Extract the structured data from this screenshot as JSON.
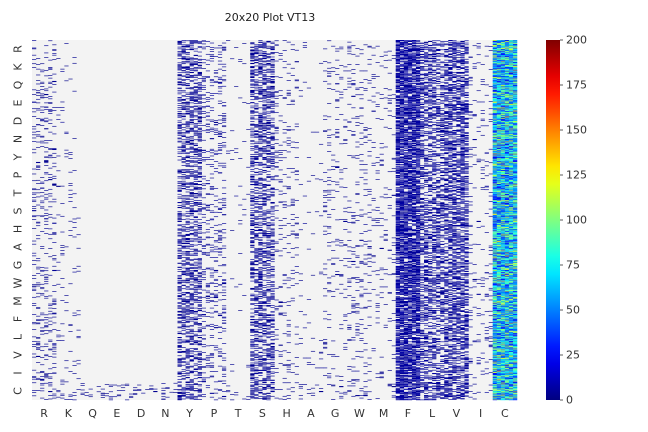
{
  "chart_data": {
    "type": "heatmap",
    "title": "20x20 Plot VT13",
    "xlabel": "",
    "ylabel": "",
    "x_categories": [
      "R",
      "K",
      "Q",
      "E",
      "D",
      "N",
      "Y",
      "P",
      "T",
      "S",
      "H",
      "A",
      "G",
      "W",
      "M",
      "F",
      "L",
      "V",
      "I",
      "C"
    ],
    "y_categories_top_to_bottom": [
      "R",
      "K",
      "Q",
      "E",
      "D",
      "N",
      "Y",
      "P",
      "T",
      "S",
      "H",
      "A",
      "G",
      "W",
      "M",
      "F",
      "L",
      "V",
      "I",
      "C"
    ],
    "colorscale": "jet",
    "colorbar_range": [
      0,
      200
    ],
    "colorbar_ticks": [
      0,
      25,
      50,
      75,
      100,
      125,
      150,
      175,
      200
    ],
    "background_color": "#f3f3f3",
    "grid": false,
    "legend": "colorbar-right",
    "column_density": {
      "R": 0.09,
      "K": 0.02,
      "Q": 0.0,
      "E": 0.0,
      "D": 0.0,
      "N": 0.0,
      "Y": 0.3,
      "P": 0.1,
      "T": 0.01,
      "S": 0.3,
      "H": 0.05,
      "A": 0.01,
      "G": 0.04,
      "W": 0.05,
      "M": 0.03,
      "F": 0.62,
      "L": 0.32,
      "V": 0.4,
      "I": 0.04,
      "C": 1.0
    },
    "column_typical_value": {
      "R": 3,
      "K": 3,
      "Q": 3,
      "E": 3,
      "D": 3,
      "N": 3,
      "Y": 4,
      "P": 4,
      "T": 3,
      "S": 4,
      "H": 3,
      "A": 3,
      "G": 3,
      "W": 3,
      "M": 3,
      "F": 6,
      "L": 5,
      "V": 5,
      "I": 4,
      "C": 60
    },
    "bottom_row_C_sparse_values": true
  }
}
